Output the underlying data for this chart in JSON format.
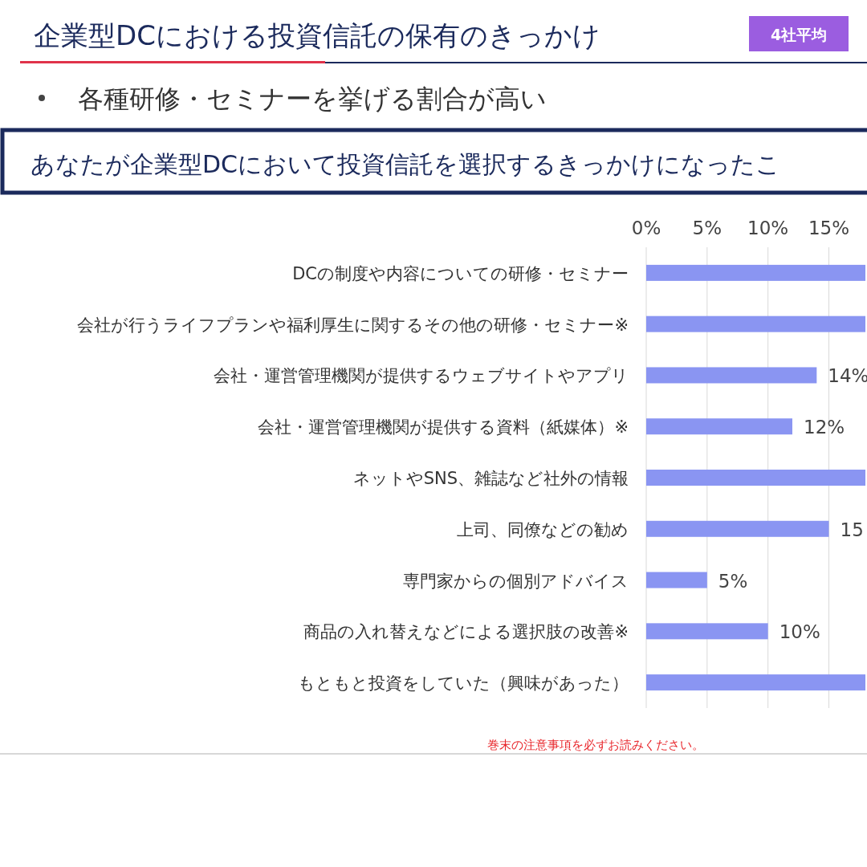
{
  "chart_data": {
    "type": "bar",
    "orientation": "horizontal",
    "title": "企業型DCにおける投資信託の保有のきっかけ",
    "subtitle": "各種研修・セミナーを挙げる割合が高い",
    "annotations": [
      "4社平均",
      "あなたが企業型DCにおいて投資信託を選択するきっかけになったこ",
      "巻末の注意事項を必ずお読みください。"
    ],
    "categories": [
      "DCの制度や内容についての研修・セミナー",
      "会社が行うライフプランや福利厚生に関するその他の研修・セミナー※",
      "会社・運営管理機関が提供するウェブサイトやアプリ",
      "会社・運営管理機関が提供する資料（紙媒体）※",
      "ネットやSNS、雑誌など社外の情報",
      "上司、同僚などの勧め",
      "専門家からの個別アドバイス",
      "商品の入れ替えなどによる選択肢の改善※",
      "もともと投資をしていた（興味があった）"
    ],
    "values": [
      18,
      18,
      14,
      12,
      18,
      15,
      5,
      10,
      18
    ],
    "value_labels": [
      null,
      null,
      "14%",
      "12%",
      null,
      "15",
      "5%",
      "10%",
      null
    ],
    "color": "#8a95f2",
    "xlim": [
      0,
      18
    ],
    "xticks": [
      {
        "value": 0,
        "label": "0%"
      },
      {
        "value": 5,
        "label": "5%"
      },
      {
        "value": 10,
        "label": "10%"
      },
      {
        "value": 15,
        "label": "15%"
      }
    ],
    "grid": "x"
  }
}
